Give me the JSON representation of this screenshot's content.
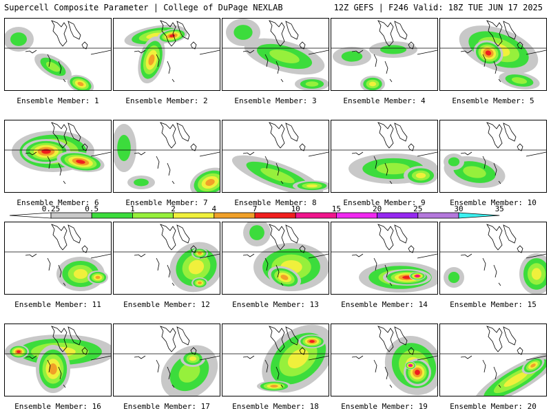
{
  "header": {
    "left": "Supercell Composite Parameter | College of DuPage NEXLAB",
    "right": "12Z GEFS | F246 Valid: 18Z TUE JUN 17 2025"
  },
  "colorbar": {
    "labels": [
      "0.25",
      "0.5",
      "1",
      "2",
      "4",
      "7",
      "10",
      "15",
      "20",
      "25",
      "30",
      "35"
    ],
    "colors": [
      "#c8c8c8",
      "#3cdc3c",
      "#96f03c",
      "#f0f03c",
      "#f0a028",
      "#f01e1e",
      "#f0148c",
      "#f028f0",
      "#9628f0",
      "#b478dc",
      "#3cf0f0"
    ]
  },
  "members": [
    {
      "label": "Ensemble Member: 1"
    },
    {
      "label": "Ensemble Member: 2"
    },
    {
      "label": "Ensemble Member: 3"
    },
    {
      "label": "Ensemble Member: 4"
    },
    {
      "label": "Ensemble Member: 5"
    },
    {
      "label": "Ensemble Member: 6"
    },
    {
      "label": "Ensemble Member: 7"
    },
    {
      "label": "Ensemble Member: 8"
    },
    {
      "label": "Ensemble Member: 9"
    },
    {
      "label": "Ensemble Member: 10"
    },
    {
      "label": "Ensemble Member: 11"
    },
    {
      "label": "Ensemble Member: 12"
    },
    {
      "label": "Ensemble Member: 13"
    },
    {
      "label": "Ensemble Member: 14"
    },
    {
      "label": "Ensemble Member: 15"
    },
    {
      "label": "Ensemble Member: 16"
    },
    {
      "label": "Ensemble Member: 17"
    },
    {
      "label": "Ensemble Member: 18"
    },
    {
      "label": "Ensemble Member: 19"
    },
    {
      "label": "Ensemble Member: 20"
    }
  ]
}
